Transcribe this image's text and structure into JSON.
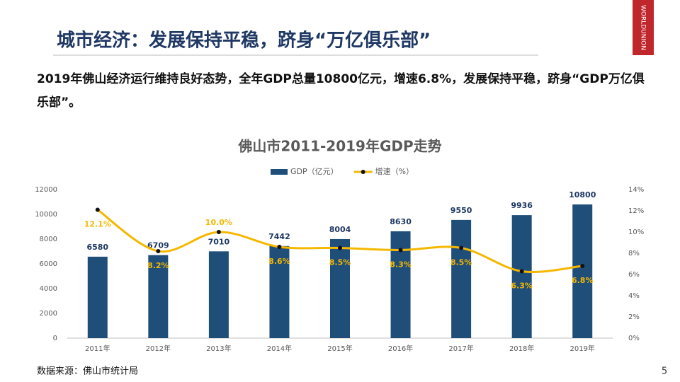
{
  "header": {
    "title": "城市经济：发展保持平稳，跻身“万亿俱乐部”",
    "logo": "WORLDUNION"
  },
  "summary": "2019年佛山经济运行维持良好态势，全年GDP总量10800亿元，增速6.8%，发展保持平稳，跻身“GDP万亿俱乐部”。",
  "chart_data": {
    "type": "bar",
    "title": "佛山市2011-2019年GDP走势",
    "categories": [
      "2011年",
      "2012年",
      "2013年",
      "2014年",
      "2015年",
      "2016年",
      "2017年",
      "2018年",
      "2019年"
    ],
    "series": [
      {
        "name": "GDP（亿元）",
        "type": "bar",
        "color": "#1f4e79",
        "values": [
          6580,
          6709,
          7010,
          7442,
          8004,
          8630,
          9550,
          9936,
          10800
        ]
      },
      {
        "name": "增速（%）",
        "type": "line",
        "axis": "y2",
        "color": "#f5b800",
        "values": [
          12.1,
          8.2,
          10.0,
          8.6,
          8.5,
          8.3,
          8.5,
          6.3,
          6.8
        ],
        "value_labels": [
          "12.1%",
          "8.2%",
          "10.0%",
          "8.6%",
          "8.5%",
          "8.3%",
          "8.5%",
          "6.3%",
          "6.8%"
        ]
      }
    ],
    "ylim": [
      0,
      12000
    ],
    "yticks": [
      0,
      2000,
      4000,
      6000,
      8000,
      10000,
      12000
    ],
    "y2lim": [
      0,
      14
    ],
    "y2ticks": [
      {
        "value": 0,
        "label": "0%"
      },
      {
        "value": 2,
        "label": "2%"
      },
      {
        "value": 4,
        "label": "4%"
      },
      {
        "value": 6,
        "label": "6%"
      },
      {
        "value": 8,
        "label": "8%"
      },
      {
        "value": 10,
        "label": "10%"
      },
      {
        "value": 12,
        "label": "12%"
      },
      {
        "value": 14,
        "label": "14%"
      }
    ],
    "legend": "top",
    "grid": false
  },
  "footer": {
    "source": "数据来源：佛山市统计局",
    "page": "5"
  }
}
